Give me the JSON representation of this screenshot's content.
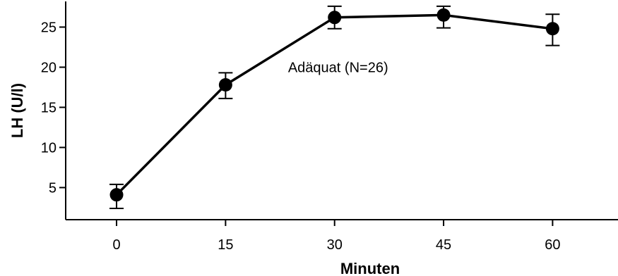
{
  "chart_data": {
    "type": "line",
    "title": "",
    "xlabel": "Minuten",
    "ylabel": "LH (U/l)",
    "x": [
      0,
      15,
      30,
      45,
      60
    ],
    "series": [
      {
        "values": [
          4.1,
          17.8,
          26.2,
          26.5,
          24.8
        ],
        "error_low": [
          2.4,
          16.1,
          24.8,
          24.9,
          22.7
        ],
        "error_high": [
          5.4,
          19.3,
          27.6,
          27.6,
          26.6
        ]
      }
    ],
    "annotation": "Adäquat (N=26)",
    "xlim": [
      -7,
      69
    ],
    "ylim": [
      1,
      28.2
    ],
    "x_ticks": [
      0,
      15,
      30,
      45,
      60
    ],
    "y_ticks": [
      5,
      10,
      15,
      20,
      25
    ],
    "grid": false,
    "legend": "none",
    "colors": {
      "line": "#000000",
      "marker": "#000000"
    }
  }
}
